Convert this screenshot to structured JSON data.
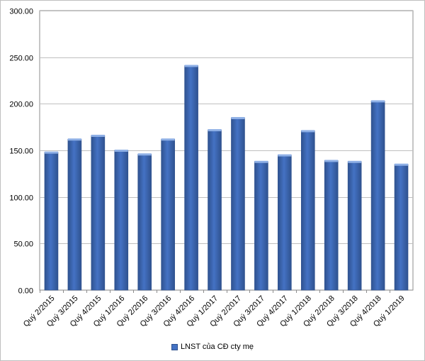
{
  "chart_data": {
    "type": "bar",
    "categories": [
      "Quý 2/2015",
      "Quý 3/2015",
      "Quý 4/2015",
      "Quý 1/2016",
      "Quý 2/2016",
      "Quý 3/2016",
      "Quý 4/2016",
      "Quý 1/2017",
      "Quý 2/2017",
      "Quý 3/2017",
      "Quý 4/2017",
      "Quý 1/2018",
      "Quý 2/2018",
      "Quý 3/2018",
      "Quý 4/2018",
      "Quý 1/2019"
    ],
    "series": [
      {
        "name": "LNST  của CĐ cty mẹ",
        "values": [
          148,
          162,
          166,
          150,
          146,
          162,
          241,
          172,
          185,
          138,
          145,
          171,
          139,
          138,
          203,
          135
        ]
      }
    ],
    "ylim": [
      0,
      300
    ],
    "yticks": [
      "0.00",
      "50.00",
      "100.00",
      "150.00",
      "200.00",
      "250.00",
      "300.00"
    ],
    "grid": true,
    "legend": "bottom",
    "colors": {
      "bar": "#4472c4",
      "bar_dark": "#2f528f",
      "bar_top": "#8fb0e6",
      "grid": "#bfbfbf"
    }
  }
}
